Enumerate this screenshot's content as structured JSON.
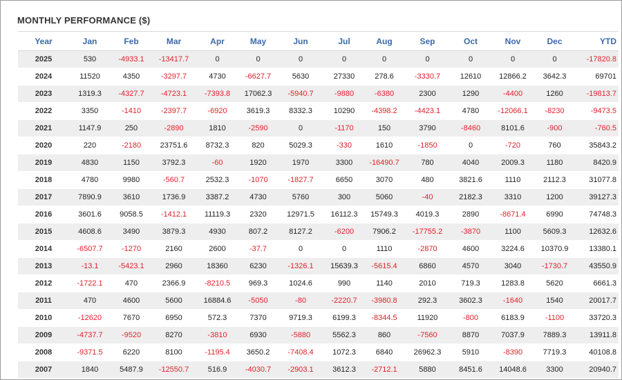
{
  "panel": {
    "title": "MONTHLY PERFORMANCE ($)"
  },
  "colors": {
    "header_text": "#3a6aa6",
    "negative": "#e0212b",
    "row_alt": "#eeeeee"
  },
  "columns": [
    "Year",
    "Jan",
    "Feb",
    "Mar",
    "Apr",
    "May",
    "Jun",
    "Jul",
    "Aug",
    "Sep",
    "Oct",
    "Nov",
    "Dec",
    "YTD"
  ],
  "rows": [
    [
      "2025",
      "530",
      "-4933.1",
      "-13417.7",
      "0",
      "0",
      "0",
      "0",
      "0",
      "0",
      "0",
      "0",
      "0",
      "-17820.8"
    ],
    [
      "2024",
      "11520",
      "4350",
      "-3297.7",
      "4730",
      "-6627.7",
      "5630",
      "27330",
      "278.6",
      "-3330.7",
      "12610",
      "12866.2",
      "3642.3",
      "69701"
    ],
    [
      "2023",
      "1319.3",
      "-4327.7",
      "-4723.1",
      "-7393.8",
      "17062.3",
      "-5940.7",
      "-9880",
      "-6380",
      "2300",
      "1290",
      "-4400",
      "1260",
      "-19813.7"
    ],
    [
      "2022",
      "3350",
      "-1410",
      "-2397.7",
      "-6920",
      "3619.3",
      "8332.3",
      "10290",
      "-4398.2",
      "-4423.1",
      "4780",
      "-12066.1",
      "-8230",
      "-9473.5"
    ],
    [
      "2021",
      "1147.9",
      "250",
      "-2890",
      "1810",
      "-2590",
      "0",
      "-1170",
      "150",
      "3790",
      "-8460",
      "8101.6",
      "-900",
      "-760.5"
    ],
    [
      "2020",
      "220",
      "-2180",
      "23751.6",
      "8732.3",
      "820",
      "5029.3",
      "-330",
      "1610",
      "-1850",
      "0",
      "-720",
      "760",
      "35843.2"
    ],
    [
      "2019",
      "4830",
      "1150",
      "3792.3",
      "-60",
      "1920",
      "1970",
      "3300",
      "-16490.7",
      "780",
      "4040",
      "2009.3",
      "1180",
      "8420.9"
    ],
    [
      "2018",
      "4780",
      "9980",
      "-560.7",
      "2532.3",
      "-1070",
      "-1827.7",
      "6650",
      "3070",
      "480",
      "3821.6",
      "1110",
      "2112.3",
      "31077.8"
    ],
    [
      "2017",
      "7890.9",
      "3610",
      "1736.9",
      "3387.2",
      "4730",
      "5760",
      "300",
      "5060",
      "-40",
      "2182.3",
      "3310",
      "1200",
      "39127.3"
    ],
    [
      "2016",
      "3601.6",
      "9058.5",
      "-1412.1",
      "11119.3",
      "2320",
      "12971.5",
      "16112.3",
      "15749.3",
      "4019.3",
      "2890",
      "-8671.4",
      "6990",
      "74748.3"
    ],
    [
      "2015",
      "4608.6",
      "3490",
      "3879.3",
      "4930",
      "807.2",
      "8127.2",
      "-6200",
      "7906.2",
      "-17755.2",
      "-3870",
      "1100",
      "5609.3",
      "12632.6"
    ],
    [
      "2014",
      "-6507.7",
      "-1270",
      "2160",
      "2600",
      "-37.7",
      "0",
      "0",
      "1110",
      "-2870",
      "4600",
      "3224.6",
      "10370.9",
      "13380.1"
    ],
    [
      "2013",
      "-13.1",
      "-5423.1",
      "2960",
      "18360",
      "6230",
      "-1326.1",
      "15639.3",
      "-5615.4",
      "6860",
      "4570",
      "3040",
      "-1730.7",
      "43550.9"
    ],
    [
      "2012",
      "-1722.1",
      "470",
      "2366.9",
      "-8210.5",
      "969.3",
      "1024.6",
      "990",
      "1140",
      "2010",
      "719.3",
      "1283.8",
      "5620",
      "6661.3"
    ],
    [
      "2011",
      "470",
      "4600",
      "5600",
      "16884.6",
      "-5050",
      "-80",
      "-2220.7",
      "-3980.8",
      "292.3",
      "3602.3",
      "-1640",
      "1540",
      "20017.7"
    ],
    [
      "2010",
      "-12620",
      "7670",
      "6950",
      "572.3",
      "7370",
      "9719.3",
      "6199.3",
      "-8344.5",
      "11920",
      "-800",
      "6183.9",
      "-1100",
      "33720.3"
    ],
    [
      "2009",
      "-4737.7",
      "-9520",
      "8270",
      "-3810",
      "6930",
      "-5880",
      "5562.3",
      "860",
      "-7560",
      "8870",
      "7037.9",
      "7889.3",
      "13911.8"
    ],
    [
      "2008",
      "-9371.5",
      "6220",
      "8100",
      "-1195.4",
      "3650.2",
      "-7408.4",
      "1072.3",
      "6840",
      "26962.3",
      "5910",
      "-8390",
      "7719.3",
      "40108.8"
    ],
    [
      "2007",
      "1840",
      "5487.9",
      "-12550.7",
      "516.9",
      "-4030.7",
      "-2903.1",
      "3612.3",
      "-2712.1",
      "5880",
      "8451.6",
      "14048.6",
      "3300",
      "20940.7"
    ]
  ]
}
